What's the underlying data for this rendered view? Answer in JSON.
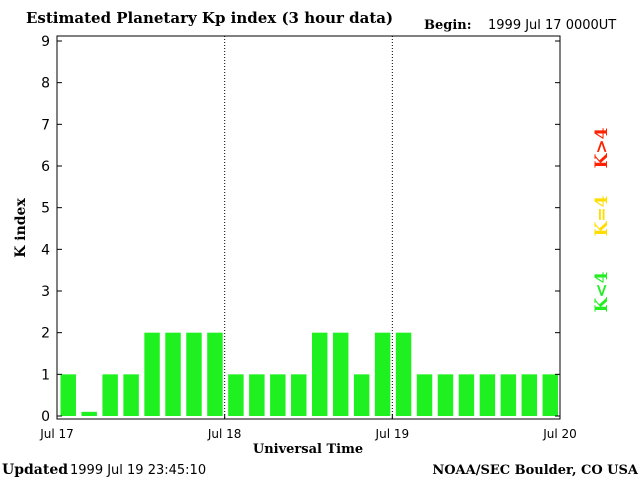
{
  "chart_data": {
    "type": "bar",
    "title": "Estimated Planetary Kp index (3 hour data)",
    "begin_label": "Begin:",
    "begin_value": "1999 Jul 17 0000UT",
    "xlabel": "Universal Time",
    "ylabel": "K index",
    "ylim": [
      0,
      9
    ],
    "yticks": [
      "0",
      "1",
      "2",
      "3",
      "4",
      "5",
      "6",
      "7",
      "8",
      "9"
    ],
    "xticks": [
      "Jul 17",
      "Jul 18",
      "Jul 19",
      "Jul 20"
    ],
    "values": [
      1,
      0.1,
      1,
      1,
      2,
      2,
      2,
      2,
      1,
      1,
      1,
      1,
      2,
      2,
      1,
      2,
      2,
      1,
      1,
      1,
      1,
      1,
      1,
      1
    ],
    "bar_color": "#1ff01f",
    "legend": [
      {
        "label": "K<4",
        "color": "#22ee22"
      },
      {
        "label": "K=4",
        "color": "#ffdd00"
      },
      {
        "label": "K>4",
        "color": "#ff2200"
      }
    ],
    "grid": false
  },
  "footer": {
    "updated_label": "Updated",
    "updated_value": "1999 Jul 19 23:45:10",
    "credit": "NOAA/SEC Boulder, CO USA"
  }
}
